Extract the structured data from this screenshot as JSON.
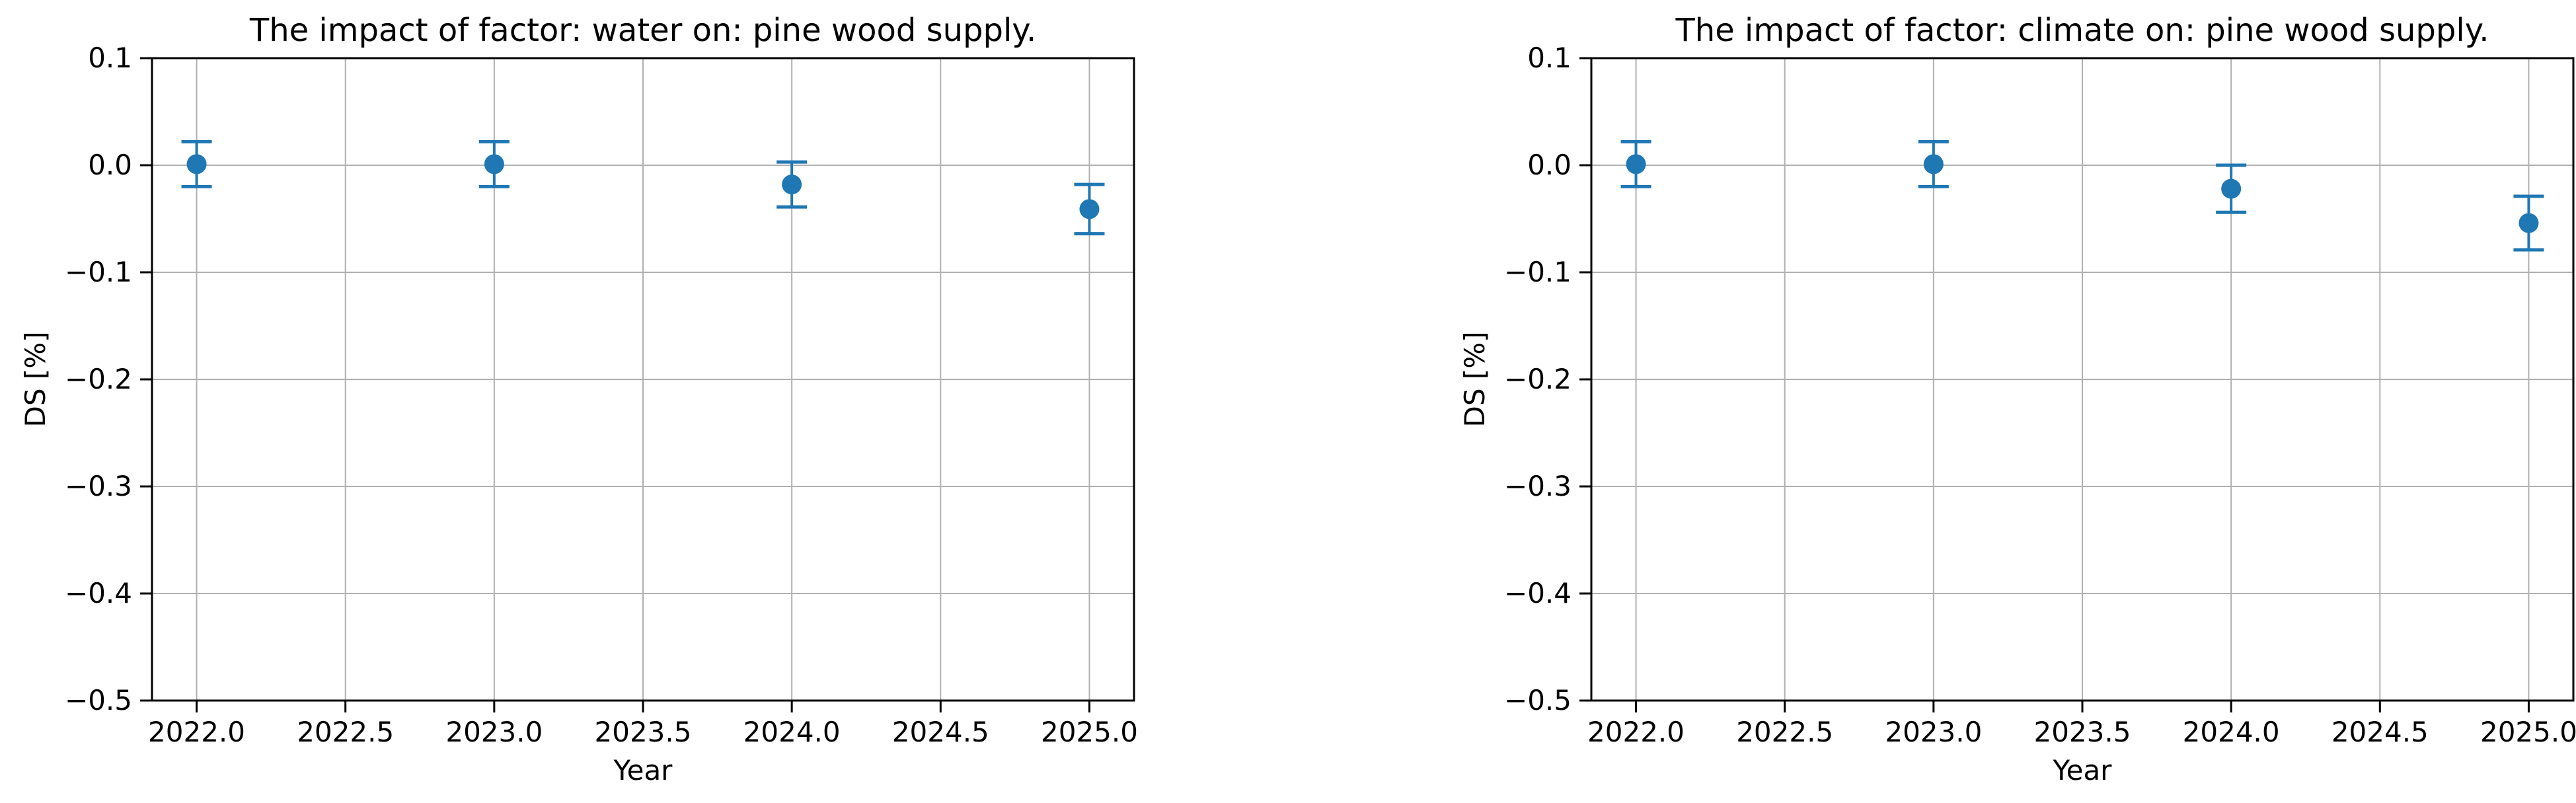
{
  "figure": {
    "background_color": "#ffffff",
    "n_subplots": 2
  },
  "style": {
    "accent_color": "#1f77b4",
    "grid_color": "#b0b0b0",
    "spine_color": "#000000",
    "text_color": "#000000"
  },
  "chart_data": [
    {
      "type": "scatter",
      "title": "The impact of factor: water on: pine wood supply.",
      "xlabel": "Year",
      "ylabel": "DS [%]",
      "x": [
        2022,
        2023,
        2024,
        2025
      ],
      "y": [
        0.001,
        0.001,
        -0.018,
        -0.041
      ],
      "yerr": [
        0.021,
        0.021,
        0.021,
        0.023
      ],
      "xlim": [
        2021.85,
        2025.15
      ],
      "ylim": [
        -0.5,
        0.1
      ],
      "xticks": [
        2022.0,
        2022.5,
        2023.0,
        2023.5,
        2024.0,
        2024.5,
        2025.0
      ],
      "yticks": [
        0.1,
        0.0,
        -0.1,
        -0.2,
        -0.3,
        -0.4,
        -0.5
      ],
      "xtick_labels": [
        "2022.0",
        "2022.5",
        "2023.0",
        "2023.5",
        "2024.0",
        "2024.5",
        "2025.0"
      ],
      "ytick_labels": [
        "0.1",
        "0.0",
        "−0.1",
        "−0.2",
        "−0.3",
        "−0.4",
        "−0.5"
      ],
      "grid": true,
      "legend": null,
      "marker": "circle",
      "error_caps": true
    },
    {
      "type": "scatter",
      "title": "The impact of factor: climate on: pine wood supply.",
      "xlabel": "Year",
      "ylabel": "DS [%]",
      "x": [
        2022,
        2023,
        2024,
        2025
      ],
      "y": [
        0.001,
        0.001,
        -0.022,
        -0.054
      ],
      "yerr": [
        0.021,
        0.021,
        0.022,
        0.025
      ],
      "xlim": [
        2021.85,
        2025.15
      ],
      "ylim": [
        -0.5,
        0.1
      ],
      "xticks": [
        2022.0,
        2022.5,
        2023.0,
        2023.5,
        2024.0,
        2024.5,
        2025.0
      ],
      "yticks": [
        0.1,
        0.0,
        -0.1,
        -0.2,
        -0.3,
        -0.4,
        -0.5
      ],
      "xtick_labels": [
        "2022.0",
        "2022.5",
        "2023.0",
        "2023.5",
        "2024.0",
        "2024.5",
        "2025.0"
      ],
      "ytick_labels": [
        "0.1",
        "0.0",
        "−0.1",
        "−0.2",
        "−0.3",
        "−0.4",
        "−0.5"
      ],
      "grid": true,
      "legend": null,
      "marker": "circle",
      "error_caps": true
    }
  ]
}
